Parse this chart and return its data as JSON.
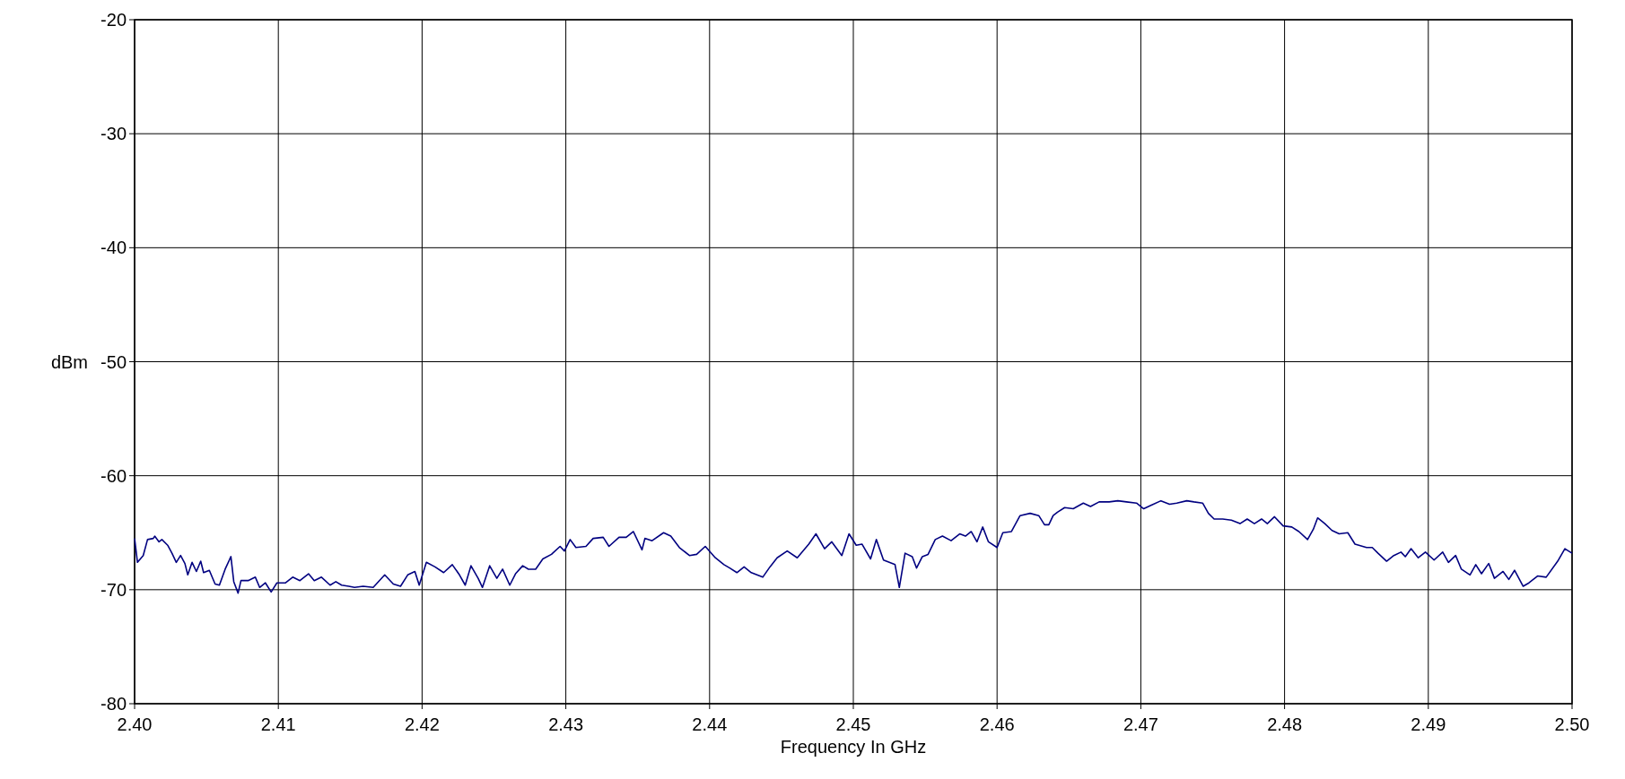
{
  "chart_data": {
    "type": "line",
    "xlabel": "Frequency In GHz",
    "ylabel": "dBm",
    "grid": true,
    "marker": "none",
    "line_style": "solid",
    "xlim": [
      2.4,
      2.5
    ],
    "ylim": [
      -80,
      -20
    ],
    "xticks": [
      {
        "value": 2.4,
        "label": "2.40"
      },
      {
        "value": 2.41,
        "label": "2.41"
      },
      {
        "value": 2.42,
        "label": "2.42"
      },
      {
        "value": 2.43,
        "label": "2.43"
      },
      {
        "value": 2.44,
        "label": "2.44"
      },
      {
        "value": 2.45,
        "label": "2.45"
      },
      {
        "value": 2.46,
        "label": "2.46"
      },
      {
        "value": 2.47,
        "label": "2.47"
      },
      {
        "value": 2.48,
        "label": "2.48"
      },
      {
        "value": 2.49,
        "label": "2.49"
      },
      {
        "value": 2.5,
        "label": "2.50"
      }
    ],
    "yticks": [
      -80,
      -70,
      -60,
      -50,
      -40,
      -30,
      -20
    ],
    "series": [
      {
        "color": "#000080",
        "x": [
          2.4,
          2.4002,
          2.4006,
          2.4009,
          2.4013,
          2.4014,
          2.4017,
          2.4019,
          2.4023,
          2.4026,
          2.4029,
          2.4032,
          2.4035,
          2.4037,
          2.404,
          2.4043,
          2.4046,
          2.4048,
          2.4052,
          2.4056,
          2.4059,
          2.4063,
          2.4067,
          2.4069,
          2.4072,
          2.4074,
          2.4079,
          2.4084,
          2.4087,
          2.4091,
          2.4095,
          2.4099,
          2.4105,
          2.411,
          2.4115,
          2.4121,
          2.4125,
          2.413,
          2.4136,
          2.414,
          2.4144,
          2.4149,
          2.4153,
          2.4159,
          2.4166,
          2.4174,
          2.418,
          2.4185,
          2.419,
          2.4195,
          2.4198,
          2.4203,
          2.4209,
          2.4215,
          2.4221,
          2.4226,
          2.423,
          2.4234,
          2.4239,
          2.4242,
          2.4247,
          2.4252,
          2.4256,
          2.4261,
          2.4265,
          2.427,
          2.4274,
          2.4279,
          2.4284,
          2.429,
          2.4296,
          2.4299,
          2.4303,
          2.4307,
          2.4314,
          2.4319,
          2.4326,
          2.433,
          2.4337,
          2.4342,
          2.4347,
          2.4353,
          2.4355,
          2.436,
          2.4368,
          2.4373,
          2.4379,
          2.4386,
          2.4391,
          2.4397,
          2.4404,
          2.441,
          2.4414,
          2.4419,
          2.4424,
          2.4429,
          2.4433,
          2.4437,
          2.4442,
          2.4447,
          2.4454,
          2.4461,
          2.4469,
          2.4474,
          2.448,
          2.4485,
          2.4492,
          2.4497,
          2.4502,
          2.4506,
          2.4512,
          2.4516,
          2.4521,
          2.4525,
          2.4529,
          2.4532,
          2.4536,
          2.4541,
          2.4544,
          2.4548,
          2.4552,
          2.4557,
          2.4562,
          2.4568,
          2.4574,
          2.4578,
          2.4582,
          2.4586,
          2.459,
          2.4594,
          2.46,
          2.4604,
          2.461,
          2.4616,
          2.4623,
          2.4629,
          2.4633,
          2.4636,
          2.4639,
          2.4642,
          2.4647,
          2.4653,
          2.466,
          2.4665,
          2.4671,
          2.4678,
          2.4684,
          2.469,
          2.4697,
          2.4702,
          2.4707,
          2.4714,
          2.472,
          2.4725,
          2.4732,
          2.4737,
          2.4743,
          2.4747,
          2.4751,
          2.4757,
          2.4763,
          2.4769,
          2.4774,
          2.4779,
          2.4784,
          2.4788,
          2.4793,
          2.4799,
          2.4805,
          2.481,
          2.4816,
          2.482,
          2.4823,
          2.4828,
          2.4833,
          2.4838,
          2.4844,
          2.4849,
          2.4857,
          2.4861,
          2.4865,
          2.4871,
          2.4876,
          2.4881,
          2.4884,
          2.4888,
          2.4893,
          2.4898,
          2.4904,
          2.491,
          2.4914,
          2.4919,
          2.4923,
          2.4929,
          2.4933,
          2.4937,
          2.4942,
          2.4946,
          2.4952,
          2.4956,
          2.496,
          2.4966,
          2.497,
          2.4976,
          2.4982,
          2.499,
          2.4995,
          2.5
        ],
        "values": [
          -65.5,
          -67.6,
          -67,
          -65.6,
          -65.5,
          -65.3,
          -65.8,
          -65.6,
          -66.1,
          -66.8,
          -67.6,
          -67,
          -67.7,
          -68.7,
          -67.6,
          -68.4,
          -67.5,
          -68.5,
          -68.3,
          -69.5,
          -69.6,
          -68.2,
          -67.1,
          -69.3,
          -70.3,
          -69.2,
          -69.2,
          -68.9,
          -69.8,
          -69.4,
          -70.2,
          -69.4,
          -69.4,
          -68.9,
          -69.2,
          -68.6,
          -69.2,
          -68.9,
          -69.6,
          -69.3,
          -69.6,
          -69.7,
          -69.8,
          -69.7,
          -69.8,
          -68.7,
          -69.5,
          -69.7,
          -68.7,
          -68.4,
          -69.6,
          -67.6,
          -68,
          -68.5,
          -67.8,
          -68.7,
          -69.6,
          -67.9,
          -69,
          -69.8,
          -67.9,
          -69,
          -68.2,
          -69.6,
          -68.6,
          -67.9,
          -68.2,
          -68.2,
          -67.3,
          -66.9,
          -66.2,
          -66.6,
          -65.6,
          -66.3,
          -66.2,
          -65.5,
          -65.4,
          -66.2,
          -65.4,
          -65.4,
          -64.9,
          -66.5,
          -65.5,
          -65.7,
          -65,
          -65.3,
          -66.3,
          -67,
          -66.9,
          -66.2,
          -67.2,
          -67.8,
          -68.1,
          -68.5,
          -68,
          -68.5,
          -68.7,
          -68.9,
          -68,
          -67.2,
          -66.6,
          -67.2,
          -66,
          -65.1,
          -66.4,
          -65.8,
          -67,
          -65.1,
          -66.1,
          -66,
          -67.3,
          -65.6,
          -67.4,
          -67.6,
          -67.8,
          -69.8,
          -66.8,
          -67.1,
          -68.1,
          -67.1,
          -66.9,
          -65.6,
          -65.3,
          -65.7,
          -65.1,
          -65.3,
          -64.9,
          -65.8,
          -64.5,
          -65.8,
          -66.3,
          -65,
          -64.9,
          -63.5,
          -63.3,
          -63.5,
          -64.3,
          -64.3,
          -63.5,
          -63.2,
          -62.8,
          -62.9,
          -62.4,
          -62.7,
          -62.3,
          -62.3,
          -62.2,
          -62.3,
          -62.4,
          -62.9,
          -62.6,
          -62.2,
          -62.5,
          -62.4,
          -62.2,
          -62.3,
          -62.4,
          -63.3,
          -63.8,
          -63.8,
          -63.9,
          -64.2,
          -63.8,
          -64.2,
          -63.8,
          -64.2,
          -63.6,
          -64.4,
          -64.5,
          -64.9,
          -65.6,
          -64.7,
          -63.7,
          -64.2,
          -64.8,
          -65.1,
          -65,
          -66,
          -66.3,
          -66.3,
          -66.8,
          -67.5,
          -67,
          -66.7,
          -67.1,
          -66.4,
          -67.2,
          -66.7,
          -67.4,
          -66.7,
          -67.6,
          -67,
          -68.2,
          -68.7,
          -67.8,
          -68.6,
          -67.7,
          -69,
          -68.4,
          -69.1,
          -68.3,
          -69.7,
          -69.4,
          -68.8,
          -68.9,
          -67.5,
          -66.4,
          -66.8
        ]
      }
    ]
  }
}
